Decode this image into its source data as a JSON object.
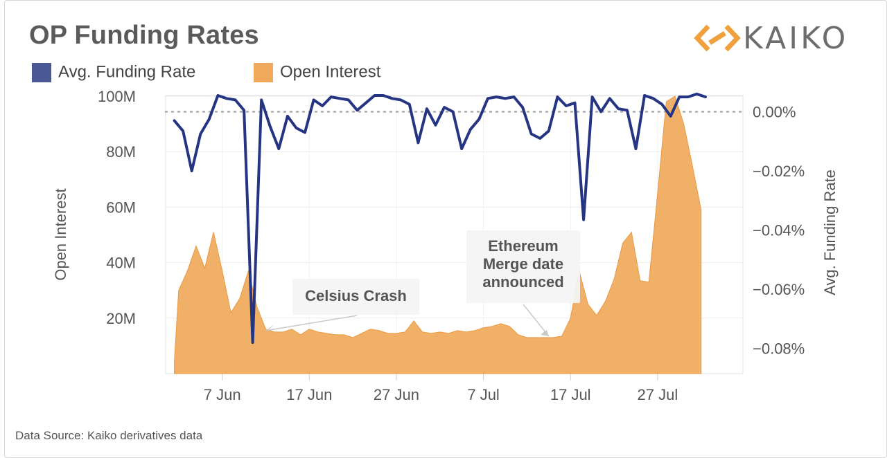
{
  "chart_data": {
    "type": "line",
    "title": "OP Funding Rates",
    "brand": "KAIKO",
    "source": "Data Source: Kaiko derivatives data",
    "colors": {
      "funding": "#253584",
      "open_interest": "#f0a95a",
      "legend_funding": "#4a5896"
    },
    "legend": [
      {
        "name": "Avg. Funding Rate",
        "color": "#4a5896"
      },
      {
        "name": "Open Interest",
        "color": "#f0a95a"
      }
    ],
    "x_ticks": [
      {
        "label": "7 Jun",
        "day": 6
      },
      {
        "label": "17 Jun",
        "day": 16
      },
      {
        "label": "27 Jun",
        "day": 26
      },
      {
        "label": "7 Jul",
        "day": 36
      },
      {
        "label": "17 Jul",
        "day": 46
      },
      {
        "label": "27 Jul",
        "day": 56
      }
    ],
    "y_left": {
      "label": "Open Interest",
      "min": 0,
      "max": 100000000,
      "ticks": [
        "20M",
        "40M",
        "60M",
        "80M",
        "100M"
      ],
      "tick_values": [
        20000000,
        40000000,
        60000000,
        80000000,
        100000000
      ]
    },
    "y_right": {
      "label": "Avg. Funding Rate",
      "min": -0.0885,
      "max": 0.0055,
      "ticks": [
        "0.00%",
        "−0.02%",
        "−0.04%",
        "−0.06%",
        "−0.08%"
      ],
      "tick_values": [
        0,
        -0.02,
        -0.04,
        -0.06,
        -0.08
      ]
    },
    "x_range_days": [
      -0.5,
      65.8
    ],
    "series": [
      {
        "name": "Open Interest",
        "axis": "left",
        "type": "area",
        "days": [
          0.5,
          1,
          2,
          3,
          4,
          5,
          6,
          7,
          8,
          9,
          10,
          11,
          12,
          13,
          14,
          15,
          16,
          17,
          18,
          19,
          20,
          21,
          22,
          23,
          24,
          25,
          26,
          27,
          28,
          29,
          30,
          31,
          32,
          33,
          34,
          35,
          36,
          37,
          38,
          39,
          40,
          41,
          42,
          43,
          44,
          45,
          46,
          47,
          48,
          49,
          50,
          51,
          52,
          53,
          54,
          55,
          56,
          57,
          58,
          59,
          60,
          61
        ],
        "values": [
          4.5,
          30,
          37,
          46,
          38,
          51,
          37,
          22,
          27,
          37,
          24,
          16,
          15,
          15,
          16,
          14,
          16,
          15,
          14.5,
          14,
          14,
          13,
          14.5,
          16,
          15.5,
          14.5,
          14.5,
          15,
          19,
          15,
          14.5,
          15,
          14.5,
          15.5,
          15,
          15.5,
          16.5,
          17,
          18,
          17,
          14,
          13,
          13,
          13,
          13,
          13.5,
          20,
          37,
          25,
          21,
          26,
          34,
          47,
          51,
          33.5,
          33,
          65,
          98,
          100,
          90,
          75,
          59
        ]
      },
      {
        "name": "Avg. Funding Rate",
        "axis": "right",
        "type": "line",
        "days": [
          0.5,
          1.5,
          2.5,
          3.5,
          4.5,
          5.5,
          6.5,
          7.5,
          8.5,
          9.5,
          10.5,
          11.5,
          12.5,
          13.5,
          14.5,
          15.5,
          16.5,
          17.5,
          18.5,
          19.5,
          20.5,
          21.5,
          22.5,
          23.5,
          24.5,
          25.5,
          26.5,
          27.5,
          28.5,
          29.5,
          30.5,
          31.5,
          32.5,
          33.5,
          34.5,
          35.5,
          36.5,
          37.5,
          38.5,
          39.5,
          40.5,
          41.5,
          42.5,
          43.5,
          44.5,
          45.5,
          46.5,
          47.5,
          48.5,
          49.5,
          50.5,
          51.5,
          52.5,
          53.5,
          54.5,
          55.5,
          56.5,
          57.5,
          58.5,
          59.5,
          60.5,
          61.5
        ],
        "values": [
          -0.003,
          -0.0065,
          -0.02,
          -0.0075,
          -0.0025,
          0.0055,
          0.0045,
          0.004,
          0.0005,
          -0.078,
          0.004,
          -0.005,
          -0.0125,
          -0.0015,
          -0.0055,
          -0.007,
          0.004,
          0.002,
          0.005,
          0.0045,
          0.004,
          0.0005,
          0.003,
          0.0055,
          0.0055,
          0.0045,
          0.004,
          0.0025,
          -0.0105,
          0.001,
          -0.0045,
          0.0015,
          0.0,
          -0.0125,
          -0.006,
          -0.0025,
          0.0045,
          0.005,
          0.0045,
          0.005,
          0.0015,
          -0.0075,
          -0.009,
          -0.0065,
          0.005,
          0.002,
          0.003,
          -0.0365,
          0.005,
          0.0,
          0.0045,
          0.001,
          0.0005,
          -0.0125,
          0.0055,
          0.0045,
          0.0025,
          -0.0015,
          0.005,
          0.005,
          0.006,
          0.005
        ]
      }
    ],
    "annotations": [
      {
        "lines": [
          "Celsius Crash"
        ],
        "target_day": 11,
        "target_value": 15000000
      },
      {
        "lines": [
          "Ethereum",
          "Merge date",
          "announced"
        ],
        "target_day": 43.5,
        "target_value": 13000000
      }
    ],
    "grid": true,
    "zero_reference_line": "dotted"
  }
}
